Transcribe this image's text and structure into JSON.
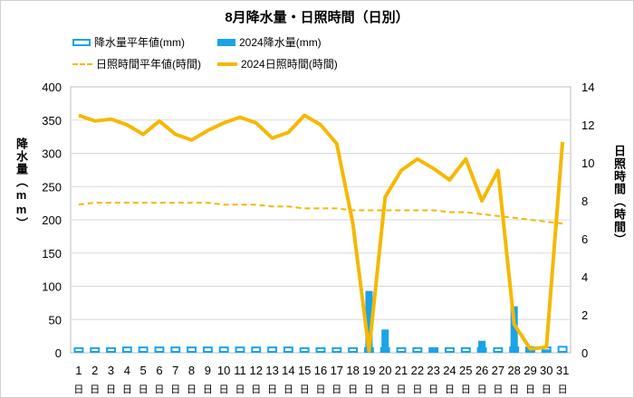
{
  "chart_data": {
    "type": "bar+line",
    "title": "8月降水量・日照時間（日別）",
    "legend": [
      {
        "label": "降水量平年値(mm)",
        "style": "bar-outline"
      },
      {
        "label": "2024降水量(mm)",
        "style": "bar-fill"
      },
      {
        "label": "日照時間平年値(時間)",
        "style": "dashed-line"
      },
      {
        "label": "2024日照時間(時間)",
        "style": "solid-line"
      }
    ],
    "ylabel_left": "降水量（mm）",
    "ylabel_right": "日照時間（時間）",
    "ylim_left": [
      0,
      400
    ],
    "ylim_right": [
      0,
      14
    ],
    "yticks_left": [
      "0",
      "50",
      "100",
      "150",
      "200",
      "250",
      "300",
      "350",
      "400"
    ],
    "yticks_right": [
      "0",
      "2",
      "4",
      "6",
      "8",
      "10",
      "12",
      "14"
    ],
    "categories": [
      "1",
      "2",
      "3",
      "4",
      "5",
      "6",
      "7",
      "8",
      "9",
      "10",
      "11",
      "12",
      "13",
      "14",
      "15",
      "16",
      "17",
      "18",
      "19",
      "20",
      "21",
      "22",
      "23",
      "24",
      "25",
      "26",
      "27",
      "28",
      "29",
      "30",
      "31"
    ],
    "day_of_week_labels": [
      "日",
      "日",
      "日",
      "日",
      "日",
      "日",
      "日",
      "日",
      "日",
      "日",
      "日",
      "日",
      "日",
      "日",
      "日",
      "日",
      "日",
      "日",
      "日",
      "日",
      "日",
      "日",
      "日",
      "日",
      "日",
      "日",
      "日",
      "日",
      "日",
      "日",
      "日"
    ],
    "series": [
      {
        "name": "降水量平年値(mm)",
        "axis": "left",
        "type": "bar-outline",
        "values": [
          7,
          7,
          7,
          8,
          8,
          8,
          8,
          8,
          8,
          8,
          8,
          8,
          8,
          8,
          7,
          7,
          7,
          7,
          7,
          7,
          7,
          7,
          7,
          7,
          7,
          7,
          7,
          8,
          8,
          8,
          9
        ]
      },
      {
        "name": "2024降水量(mm)",
        "axis": "left",
        "type": "bar",
        "values": [
          0,
          0,
          0,
          0,
          0,
          0,
          0,
          0,
          0,
          0,
          0,
          0,
          0,
          0,
          0,
          0,
          0,
          0,
          93,
          35,
          0,
          0,
          6,
          0,
          0,
          18,
          0,
          70,
          10,
          5,
          0
        ]
      },
      {
        "name": "日照時間平年値(時間)",
        "axis": "right",
        "type": "dashed-line",
        "values": [
          7.8,
          7.9,
          7.9,
          7.9,
          7.9,
          7.9,
          7.9,
          7.9,
          7.9,
          7.8,
          7.8,
          7.8,
          7.7,
          7.7,
          7.6,
          7.6,
          7.6,
          7.5,
          7.5,
          7.5,
          7.5,
          7.5,
          7.5,
          7.4,
          7.4,
          7.3,
          7.2,
          7.1,
          7.0,
          6.9,
          6.8
        ]
      },
      {
        "name": "2024日照時間(時間)",
        "axis": "right",
        "type": "line",
        "values": [
          12.5,
          12.2,
          12.3,
          12.0,
          11.5,
          12.2,
          11.5,
          11.2,
          11.7,
          12.1,
          12.4,
          12.1,
          11.3,
          11.6,
          12.5,
          12.0,
          11.0,
          6.8,
          0.1,
          8.2,
          9.6,
          10.2,
          9.7,
          9.1,
          10.2,
          8.0,
          9.6,
          1.5,
          0.2,
          0.3,
          11.1
        ]
      }
    ]
  }
}
